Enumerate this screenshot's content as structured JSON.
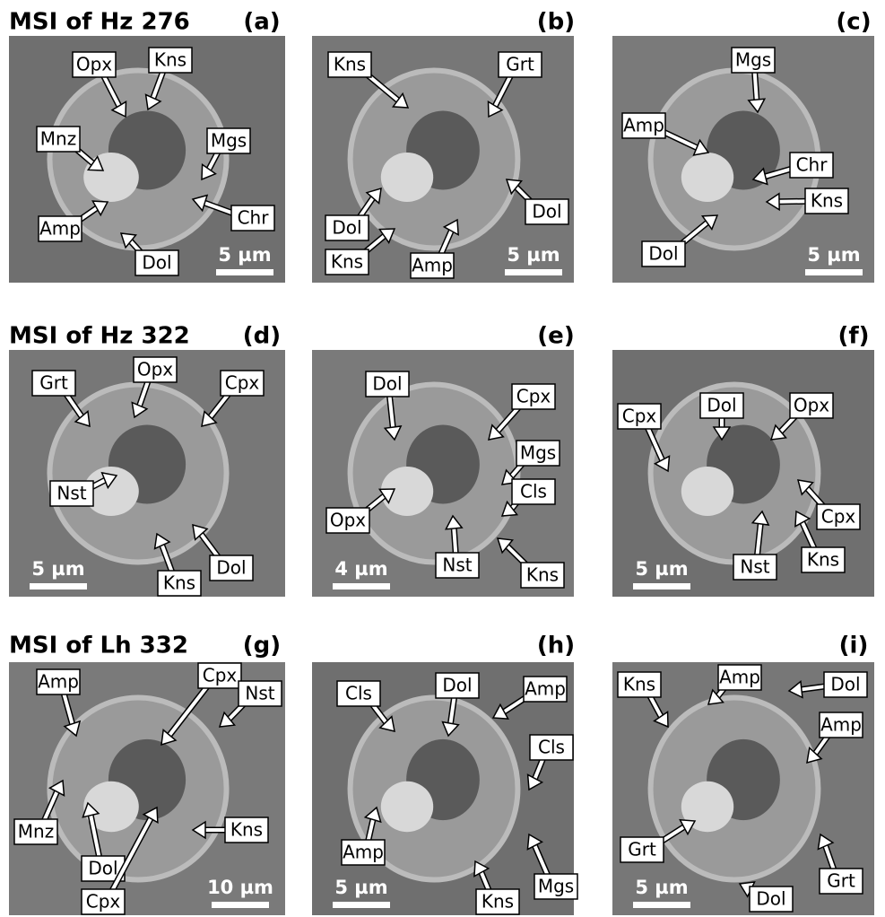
{
  "rows": [
    {
      "title": "MSI of Hz 276",
      "panels": [
        {
          "letter": "(a)",
          "scale": "5 µm",
          "labels": [
            "Opx",
            "Kns",
            "Mnz",
            "Mgs",
            "Amp",
            "Chr",
            "Dol"
          ]
        },
        {
          "letter": "(b)",
          "scale": "5 µm",
          "labels": [
            "Kns",
            "Grt",
            "Dol",
            "Kns",
            "Amp",
            "Dol"
          ]
        },
        {
          "letter": "(c)",
          "scale": "5 µm",
          "labels": [
            "Mgs",
            "Amp",
            "Chr",
            "Kns",
            "Dol"
          ]
        }
      ]
    },
    {
      "title": "MSI of Hz 322",
      "panels": [
        {
          "letter": "(d)",
          "scale": "5 µm",
          "labels": [
            "Grt",
            "Opx",
            "Cpx",
            "Nst",
            "Kns",
            "Dol"
          ]
        },
        {
          "letter": "(e)",
          "scale": "4 µm",
          "labels": [
            "Dol",
            "Cpx",
            "Mgs",
            "Opx",
            "Cls",
            "Nst",
            "Kns"
          ]
        },
        {
          "letter": "(f)",
          "scale": "5 µm",
          "labels": [
            "Cpx",
            "Dol",
            "Opx",
            "Nst",
            "Cpx",
            "Kns"
          ]
        }
      ]
    },
    {
      "title": "MSI of Lh 332",
      "panels": [
        {
          "letter": "(g)",
          "scale": "10 µm",
          "labels": [
            "Amp",
            "Cpx",
            "Nst",
            "Mnz",
            "Kns",
            "Dol",
            "Cpx"
          ]
        },
        {
          "letter": "(h)",
          "scale": "5 µm",
          "labels": [
            "Cls",
            "Dol",
            "Amp",
            "Cls",
            "Amp",
            "Kns",
            "Mgs"
          ]
        },
        {
          "letter": "(i)",
          "scale": "5 µm",
          "labels": [
            "Kns",
            "Amp",
            "Dol",
            "Amp",
            "Grt",
            "Grt",
            "Dol"
          ]
        }
      ]
    }
  ]
}
